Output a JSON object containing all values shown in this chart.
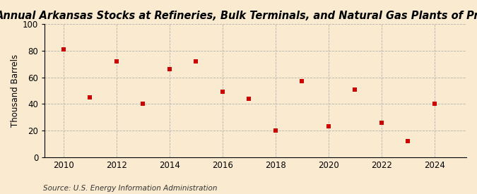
{
  "title": "Annual Arkansas Stocks at Refineries, Bulk Terminals, and Natural Gas Plants of Propane",
  "ylabel": "Thousand Barrels",
  "source": "Source: U.S. Energy Information Administration",
  "years": [
    2010,
    2011,
    2012,
    2013,
    2014,
    2015,
    2016,
    2017,
    2018,
    2019,
    2020,
    2021,
    2022,
    2023,
    2024
  ],
  "values": [
    81,
    45,
    72,
    40,
    66,
    72,
    49,
    44,
    20,
    57,
    23,
    51,
    26,
    12,
    40
  ],
  "ylim": [
    0,
    100
  ],
  "yticks": [
    0,
    20,
    40,
    60,
    80,
    100
  ],
  "xticks": [
    2010,
    2012,
    2014,
    2016,
    2018,
    2020,
    2022,
    2024
  ],
  "marker_color": "#cc0000",
  "marker": "s",
  "marker_size": 5,
  "background_color": "#faebd0",
  "grid_color": "#aaaaaa",
  "title_fontsize": 10.5,
  "label_fontsize": 8.5,
  "tick_fontsize": 8.5,
  "source_fontsize": 7.5
}
